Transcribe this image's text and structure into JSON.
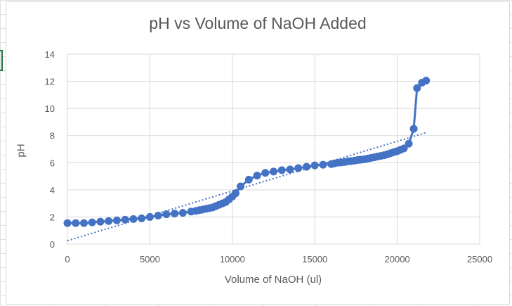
{
  "chart_data": {
    "type": "scatter",
    "title": "pH vs Volume of NaOH Added",
    "xlabel": "Volume of NaOH (ul)",
    "ylabel": "pH",
    "xlim": [
      0,
      25000
    ],
    "ylim": [
      0,
      14
    ],
    "xticks": [
      0,
      5000,
      10000,
      15000,
      20000,
      25000
    ],
    "yticks": [
      0,
      2,
      4,
      6,
      8,
      10,
      12,
      14
    ],
    "grid": true,
    "legend": "none",
    "series_color": "#4472C4",
    "trendline": {
      "type": "linear",
      "style": "dotted",
      "from": [
        0,
        0.25
      ],
      "to": [
        21700,
        8.2
      ]
    },
    "series": [
      {
        "x": [
          0,
          500,
          1000,
          1500,
          2000,
          2500,
          3000,
          3500,
          4000,
          4500,
          5000,
          5500,
          6000,
          6500,
          7000,
          7500,
          7800,
          8000,
          8200,
          8400,
          8600,
          8800,
          9000,
          9200,
          9400,
          9600,
          9800,
          10000,
          10200,
          10500,
          11000,
          11500,
          12000,
          12500,
          13000,
          13500,
          14000,
          14500,
          15000,
          15500,
          16000,
          16200,
          16400,
          16600,
          16800,
          17000,
          17200,
          17400,
          17600,
          17800,
          18000,
          18200,
          18400,
          18600,
          18800,
          19000,
          19200,
          19400,
          19600,
          19800,
          20000,
          20200,
          20400,
          20700,
          21000,
          21200,
          21500,
          21750
        ],
        "y": [
          1.55,
          1.55,
          1.55,
          1.6,
          1.65,
          1.7,
          1.75,
          1.8,
          1.85,
          1.9,
          2.0,
          2.1,
          2.2,
          2.25,
          2.3,
          2.4,
          2.45,
          2.5,
          2.55,
          2.6,
          2.65,
          2.7,
          2.8,
          2.9,
          3.0,
          3.1,
          3.3,
          3.5,
          3.75,
          4.25,
          4.75,
          5.05,
          5.25,
          5.35,
          5.45,
          5.5,
          5.6,
          5.7,
          5.8,
          5.85,
          5.9,
          5.95,
          6.0,
          6.02,
          6.05,
          6.1,
          6.12,
          6.15,
          6.2,
          6.22,
          6.25,
          6.3,
          6.35,
          6.4,
          6.45,
          6.5,
          6.55,
          6.62,
          6.7,
          6.78,
          6.85,
          6.95,
          7.05,
          7.4,
          8.5,
          11.5,
          11.9,
          12.05
        ]
      }
    ]
  }
}
